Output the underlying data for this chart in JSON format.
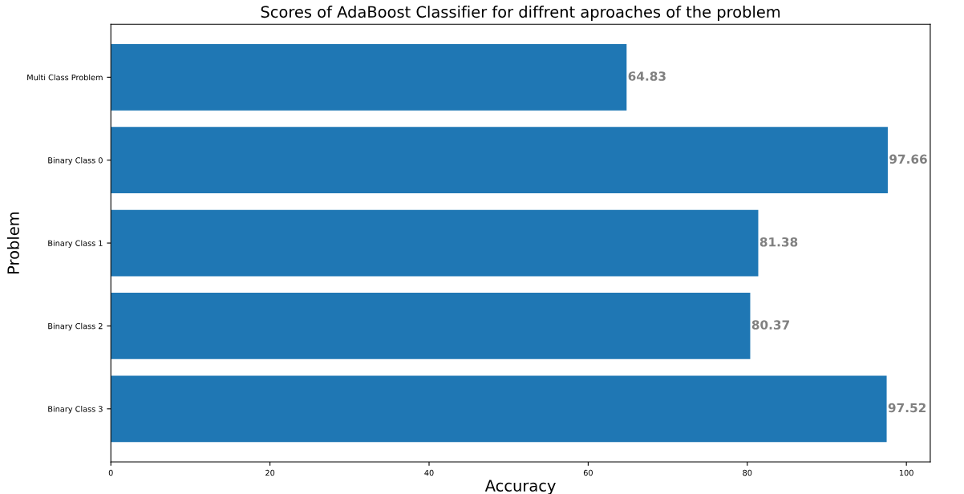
{
  "chart_data": {
    "type": "bar",
    "orientation": "horizontal",
    "title": "Scores of AdaBoost Classifier for diffrent aproaches of the problem",
    "xlabel": "Accuracy",
    "ylabel": "Problem",
    "categories": [
      "Multi Class Problem",
      "Binary Class 0",
      "Binary Class 1",
      "Binary Class 2",
      "Binary Class 3"
    ],
    "values": [
      64.83,
      97.66,
      81.38,
      80.37,
      97.52
    ],
    "color": "#1f77b4",
    "data_labels": true,
    "xlim": [
      0,
      103
    ],
    "xticks": [
      0,
      20,
      40,
      60,
      80,
      100
    ],
    "grid": false
  }
}
